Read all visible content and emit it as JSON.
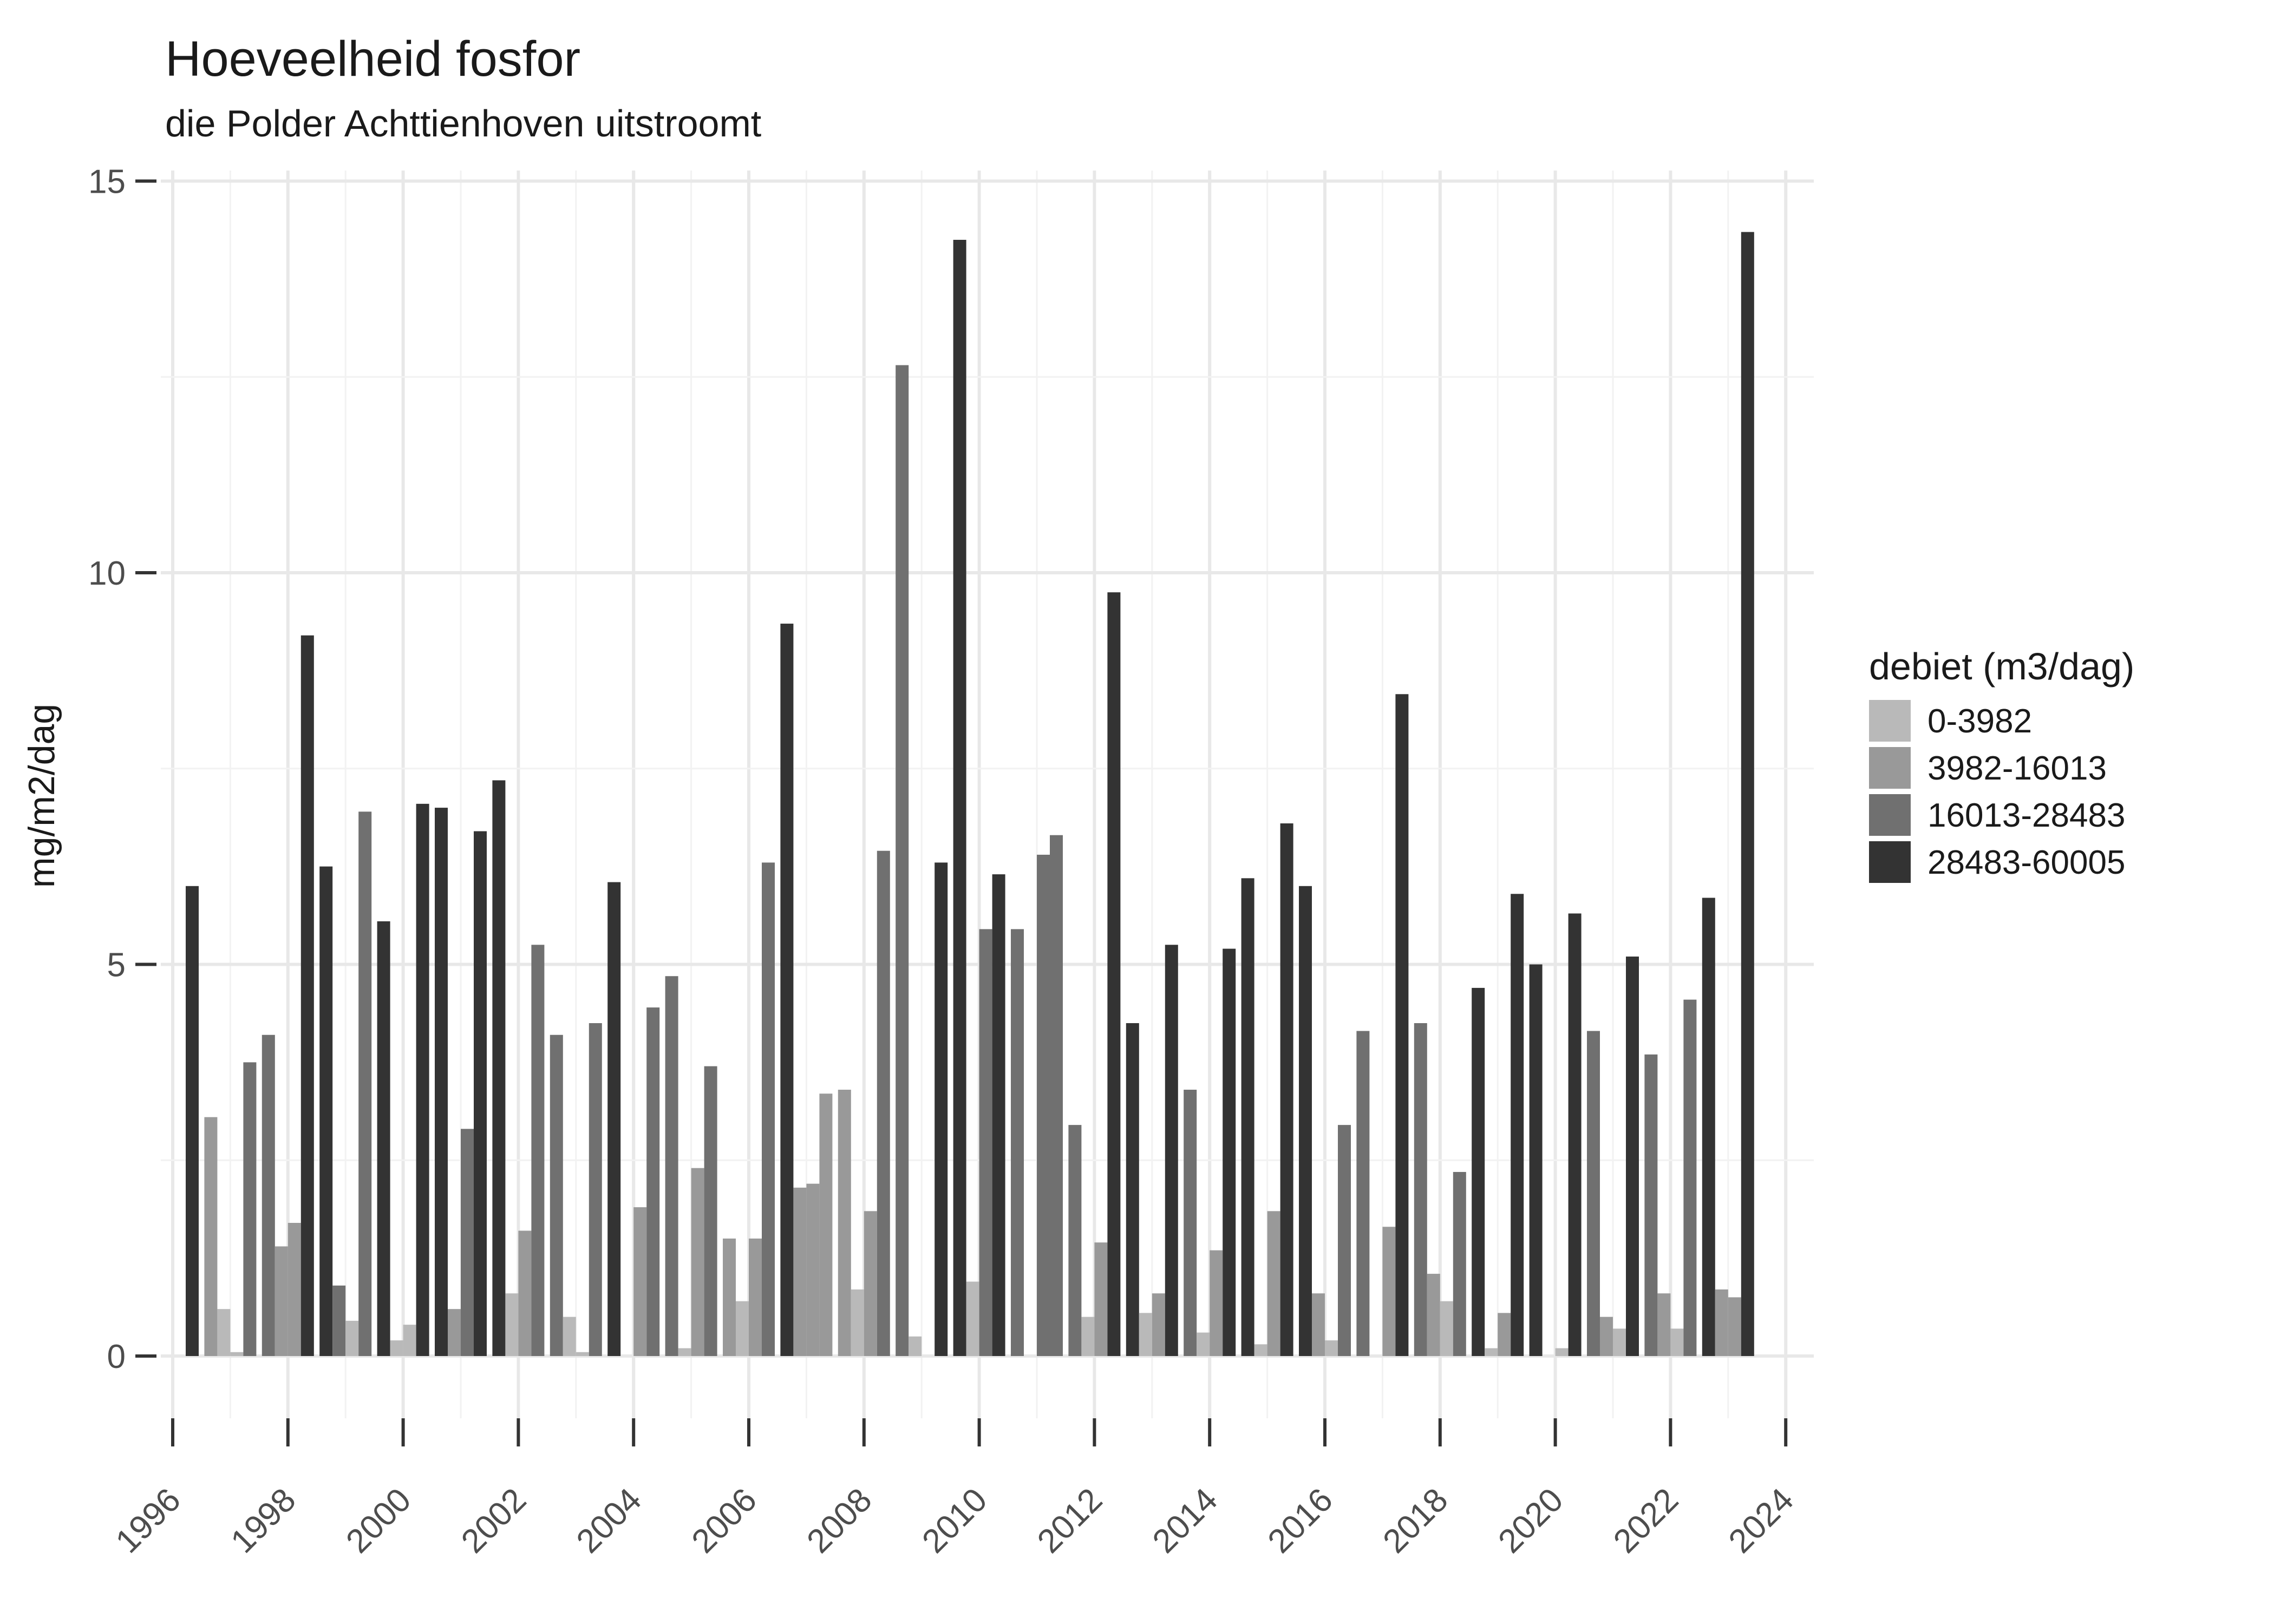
{
  "title": "Hoeveelheid fosfor",
  "subtitle": "die Polder Achttienhoven uitstroomt",
  "ylabel": "mg/m2/dag",
  "legend": {
    "title": "debiet (m3/dag)",
    "items": [
      {
        "label": "0-3982",
        "color": "#b9b9b9"
      },
      {
        "label": "3982-16013",
        "color": "#999999"
      },
      {
        "label": "16013-28483",
        "color": "#707070"
      },
      {
        "label": "28483-60005",
        "color": "#333333"
      }
    ]
  },
  "chart_data": {
    "type": "bar",
    "title": "Hoeveelheid fosfor",
    "subtitle": "die Polder Achttienhoven uitstroomt",
    "xlabel": "",
    "ylabel": "mg/m2/dag",
    "ylim": [
      0,
      15
    ],
    "yticks": [
      0,
      5,
      10,
      15
    ],
    "y_minor_gridlines": [
      2.5,
      7.5,
      12.5
    ],
    "xticks": [
      1996,
      1998,
      2000,
      2002,
      2004,
      2006,
      2008,
      2010,
      2012,
      2014,
      2016,
      2018,
      2020,
      2022,
      2024
    ],
    "x_range_years": [
      1996,
      2024
    ],
    "grid": "on",
    "legend_position": "right",
    "legend_title": "debiet (m3/dag)",
    "categories": [
      "0-3982",
      "3982-16013",
      "16013-28483",
      "28483-60005"
    ],
    "colors": {
      "0-3982": "#b9b9b9",
      "3982-16013": "#999999",
      "16013-28483": "#707070",
      "28483-60005": "#333333"
    },
    "slots_per_year": 4,
    "bars": [
      {
        "year": 1996,
        "slot": 4,
        "debiet": "28483-60005",
        "value": 6.0
      },
      {
        "year": 1997,
        "slot": 1,
        "debiet": "3982-16013",
        "value": 3.05
      },
      {
        "year": 1997,
        "slot": 2,
        "debiet": "0-3982",
        "value": 0.6
      },
      {
        "year": 1997,
        "slot": 3,
        "debiet": "0-3982",
        "value": 0.05
      },
      {
        "year": 1997,
        "slot": 4,
        "debiet": "16013-28483",
        "value": 3.75
      },
      {
        "year": 1998,
        "slot": 1,
        "debiet": "16013-28483",
        "value": 4.1
      },
      {
        "year": 1998,
        "slot": 2,
        "debiet": "3982-16013",
        "value": 1.4
      },
      {
        "year": 1998,
        "slot": 3,
        "debiet": "3982-16013",
        "value": 1.7
      },
      {
        "year": 1998,
        "slot": 4,
        "debiet": "28483-60005",
        "value": 9.2
      },
      {
        "year": 1999,
        "slot": 1,
        "debiet": "28483-60005",
        "value": 6.25
      },
      {
        "year": 1999,
        "slot": 2,
        "debiet": "16013-28483",
        "value": 0.9
      },
      {
        "year": 1999,
        "slot": 3,
        "debiet": "0-3982",
        "value": 0.45
      },
      {
        "year": 1999,
        "slot": 4,
        "debiet": "16013-28483",
        "value": 6.95
      },
      {
        "year": 2000,
        "slot": 1,
        "debiet": "28483-60005",
        "value": 5.55
      },
      {
        "year": 2000,
        "slot": 2,
        "debiet": "0-3982",
        "value": 0.2
      },
      {
        "year": 2000,
        "slot": 3,
        "debiet": "0-3982",
        "value": 0.4
      },
      {
        "year": 2000,
        "slot": 4,
        "debiet": "28483-60005",
        "value": 7.05
      },
      {
        "year": 2001,
        "slot": 1,
        "debiet": "28483-60005",
        "value": 7.0
      },
      {
        "year": 2001,
        "slot": 2,
        "debiet": "3982-16013",
        "value": 0.6
      },
      {
        "year": 2001,
        "slot": 3,
        "debiet": "16013-28483",
        "value": 2.9
      },
      {
        "year": 2001,
        "slot": 4,
        "debiet": "28483-60005",
        "value": 6.7
      },
      {
        "year": 2002,
        "slot": 1,
        "debiet": "28483-60005",
        "value": 7.35
      },
      {
        "year": 2002,
        "slot": 2,
        "debiet": "0-3982",
        "value": 0.8
      },
      {
        "year": 2002,
        "slot": 3,
        "debiet": "3982-16013",
        "value": 1.6
      },
      {
        "year": 2002,
        "slot": 4,
        "debiet": "16013-28483",
        "value": 5.25
      },
      {
        "year": 2003,
        "slot": 1,
        "debiet": "16013-28483",
        "value": 4.1
      },
      {
        "year": 2003,
        "slot": 2,
        "debiet": "0-3982",
        "value": 0.5
      },
      {
        "year": 2003,
        "slot": 3,
        "debiet": "0-3982",
        "value": 0.05
      },
      {
        "year": 2003,
        "slot": 4,
        "debiet": "16013-28483",
        "value": 4.25
      },
      {
        "year": 2004,
        "slot": 1,
        "debiet": "28483-60005",
        "value": 6.05
      },
      {
        "year": 2004,
        "slot": 3,
        "debiet": "3982-16013",
        "value": 1.9
      },
      {
        "year": 2004,
        "slot": 4,
        "debiet": "16013-28483",
        "value": 4.45
      },
      {
        "year": 2005,
        "slot": 1,
        "debiet": "16013-28483",
        "value": 4.85
      },
      {
        "year": 2005,
        "slot": 2,
        "debiet": "0-3982",
        "value": 0.1
      },
      {
        "year": 2005,
        "slot": 3,
        "debiet": "3982-16013",
        "value": 2.4
      },
      {
        "year": 2005,
        "slot": 4,
        "debiet": "16013-28483",
        "value": 3.7
      },
      {
        "year": 2006,
        "slot": 1,
        "debiet": "3982-16013",
        "value": 1.5
      },
      {
        "year": 2006,
        "slot": 2,
        "debiet": "0-3982",
        "value": 0.7
      },
      {
        "year": 2006,
        "slot": 3,
        "debiet": "3982-16013",
        "value": 1.5
      },
      {
        "year": 2006,
        "slot": 4,
        "debiet": "16013-28483",
        "value": 6.3
      },
      {
        "year": 2007,
        "slot": 1,
        "debiet": "28483-60005",
        "value": 9.35
      },
      {
        "year": 2007,
        "slot": 2,
        "debiet": "3982-16013",
        "value": 2.15
      },
      {
        "year": 2007,
        "slot": 3,
        "debiet": "3982-16013",
        "value": 2.2
      },
      {
        "year": 2007,
        "slot": 4,
        "debiet": "3982-16013",
        "value": 3.35
      },
      {
        "year": 2008,
        "slot": 1,
        "debiet": "3982-16013",
        "value": 3.4
      },
      {
        "year": 2008,
        "slot": 2,
        "debiet": "0-3982",
        "value": 0.85
      },
      {
        "year": 2008,
        "slot": 3,
        "debiet": "3982-16013",
        "value": 1.85
      },
      {
        "year": 2008,
        "slot": 4,
        "debiet": "16013-28483",
        "value": 6.45
      },
      {
        "year": 2009,
        "slot": 1,
        "debiet": "16013-28483",
        "value": 12.65
      },
      {
        "year": 2009,
        "slot": 2,
        "debiet": "0-3982",
        "value": 0.25
      },
      {
        "year": 2009,
        "slot": 4,
        "debiet": "28483-60005",
        "value": 6.3
      },
      {
        "year": 2010,
        "slot": 1,
        "debiet": "28483-60005",
        "value": 14.25
      },
      {
        "year": 2010,
        "slot": 2,
        "debiet": "0-3982",
        "value": 0.95
      },
      {
        "year": 2010,
        "slot": 3,
        "debiet": "16013-28483",
        "value": 5.45
      },
      {
        "year": 2010,
        "slot": 4,
        "debiet": "28483-60005",
        "value": 6.15
      },
      {
        "year": 2011,
        "slot": 1,
        "debiet": "16013-28483",
        "value": 5.45
      },
      {
        "year": 2011,
        "slot": 3,
        "debiet": "16013-28483",
        "value": 6.4
      },
      {
        "year": 2011,
        "slot": 4,
        "debiet": "16013-28483",
        "value": 6.65
      },
      {
        "year": 2012,
        "slot": 1,
        "debiet": "16013-28483",
        "value": 2.95
      },
      {
        "year": 2012,
        "slot": 2,
        "debiet": "0-3982",
        "value": 0.5
      },
      {
        "year": 2012,
        "slot": 3,
        "debiet": "3982-16013",
        "value": 1.45
      },
      {
        "year": 2012,
        "slot": 4,
        "debiet": "28483-60005",
        "value": 9.75
      },
      {
        "year": 2013,
        "slot": 1,
        "debiet": "28483-60005",
        "value": 4.25
      },
      {
        "year": 2013,
        "slot": 2,
        "debiet": "0-3982",
        "value": 0.55
      },
      {
        "year": 2013,
        "slot": 3,
        "debiet": "3982-16013",
        "value": 0.8
      },
      {
        "year": 2013,
        "slot": 4,
        "debiet": "28483-60005",
        "value": 5.25
      },
      {
        "year": 2014,
        "slot": 1,
        "debiet": "16013-28483",
        "value": 3.4
      },
      {
        "year": 2014,
        "slot": 2,
        "debiet": "0-3982",
        "value": 0.3
      },
      {
        "year": 2014,
        "slot": 3,
        "debiet": "3982-16013",
        "value": 1.35
      },
      {
        "year": 2014,
        "slot": 4,
        "debiet": "28483-60005",
        "value": 5.2
      },
      {
        "year": 2015,
        "slot": 1,
        "debiet": "28483-60005",
        "value": 6.1
      },
      {
        "year": 2015,
        "slot": 2,
        "debiet": "0-3982",
        "value": 0.15
      },
      {
        "year": 2015,
        "slot": 3,
        "debiet": "3982-16013",
        "value": 1.85
      },
      {
        "year": 2015,
        "slot": 4,
        "debiet": "28483-60005",
        "value": 6.8
      },
      {
        "year": 2016,
        "slot": 1,
        "debiet": "28483-60005",
        "value": 6.0
      },
      {
        "year": 2016,
        "slot": 2,
        "debiet": "3982-16013",
        "value": 0.8
      },
      {
        "year": 2016,
        "slot": 3,
        "debiet": "0-3982",
        "value": 0.2
      },
      {
        "year": 2016,
        "slot": 4,
        "debiet": "16013-28483",
        "value": 2.95
      },
      {
        "year": 2017,
        "slot": 1,
        "debiet": "16013-28483",
        "value": 4.15
      },
      {
        "year": 2017,
        "slot": 3,
        "debiet": "3982-16013",
        "value": 1.65
      },
      {
        "year": 2017,
        "slot": 4,
        "debiet": "28483-60005",
        "value": 8.45
      },
      {
        "year": 2018,
        "slot": 1,
        "debiet": "16013-28483",
        "value": 4.25
      },
      {
        "year": 2018,
        "slot": 2,
        "debiet": "3982-16013",
        "value": 1.05
      },
      {
        "year": 2018,
        "slot": 3,
        "debiet": "0-3982",
        "value": 0.7
      },
      {
        "year": 2018,
        "slot": 4,
        "debiet": "16013-28483",
        "value": 2.35
      },
      {
        "year": 2019,
        "slot": 1,
        "debiet": "28483-60005",
        "value": 4.7
      },
      {
        "year": 2019,
        "slot": 2,
        "debiet": "0-3982",
        "value": 0.1
      },
      {
        "year": 2019,
        "slot": 3,
        "debiet": "3982-16013",
        "value": 0.55
      },
      {
        "year": 2019,
        "slot": 4,
        "debiet": "28483-60005",
        "value": 5.9
      },
      {
        "year": 2020,
        "slot": 1,
        "debiet": "28483-60005",
        "value": 5.0
      },
      {
        "year": 2020,
        "slot": 3,
        "debiet": "0-3982",
        "value": 0.1
      },
      {
        "year": 2020,
        "slot": 4,
        "debiet": "28483-60005",
        "value": 5.65
      },
      {
        "year": 2021,
        "slot": 1,
        "debiet": "16013-28483",
        "value": 4.15
      },
      {
        "year": 2021,
        "slot": 2,
        "debiet": "3982-16013",
        "value": 0.5
      },
      {
        "year": 2021,
        "slot": 3,
        "debiet": "0-3982",
        "value": 0.35
      },
      {
        "year": 2021,
        "slot": 4,
        "debiet": "28483-60005",
        "value": 5.1
      },
      {
        "year": 2022,
        "slot": 1,
        "debiet": "16013-28483",
        "value": 3.85
      },
      {
        "year": 2022,
        "slot": 2,
        "debiet": "3982-16013",
        "value": 0.8
      },
      {
        "year": 2022,
        "slot": 3,
        "debiet": "0-3982",
        "value": 0.35
      },
      {
        "year": 2022,
        "slot": 4,
        "debiet": "16013-28483",
        "value": 4.55
      },
      {
        "year": 2023,
        "slot": 1,
        "debiet": "28483-60005",
        "value": 5.85
      },
      {
        "year": 2023,
        "slot": 2,
        "debiet": "3982-16013",
        "value": 0.85
      },
      {
        "year": 2023,
        "slot": 3,
        "debiet": "3982-16013",
        "value": 0.75
      },
      {
        "year": 2023,
        "slot": 4,
        "debiet": "28483-60005",
        "value": 14.35
      }
    ]
  }
}
